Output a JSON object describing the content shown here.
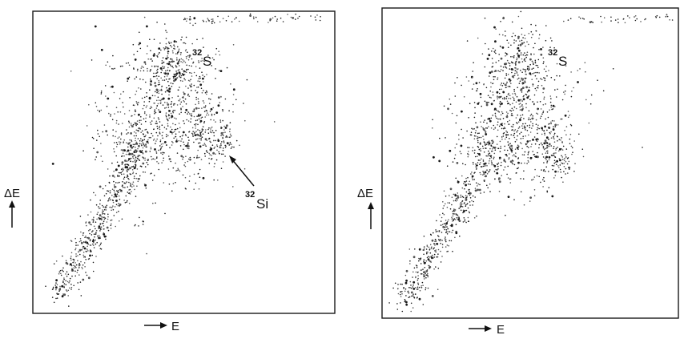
{
  "chart_data": [
    {
      "type": "scatter",
      "panel": "left",
      "xlabel": "E",
      "ylabel": "ΔE",
      "xlim": [
        0,
        100
      ],
      "ylim": [
        0,
        100
      ],
      "grid": false,
      "annotations": [
        {
          "text": "32",
          "kind": "superscript",
          "ion": "S",
          "anchor_x": 52,
          "anchor_y": 84
        },
        {
          "text": "32",
          "kind": "superscript",
          "ion": "Si",
          "anchor_x": 68,
          "anchor_y": 40,
          "arrow_to_x": 64,
          "arrow_to_y": 58
        }
      ],
      "clusters": [
        {
          "name": "S band",
          "cx": 44,
          "cy": 68,
          "sx": 11,
          "sy": 12,
          "n": 650
        },
        {
          "name": "S peak",
          "cx": 46,
          "cy": 82,
          "sx": 4,
          "sy": 5,
          "n": 180
        },
        {
          "name": "left lobe",
          "cx": 36,
          "cy": 57,
          "sx": 6,
          "sy": 4,
          "n": 160
        },
        {
          "name": "right lobe",
          "cx": 57,
          "cy": 57,
          "sx": 4,
          "sy": 5,
          "n": 140
        },
        {
          "name": "Si tail",
          "cx": 64,
          "cy": 58,
          "sx": 2,
          "sy": 3,
          "n": 30
        },
        {
          "name": "diagonal band",
          "from": [
            8,
            6
          ],
          "to": [
            36,
            54
          ],
          "width": 4,
          "n": 520
        },
        {
          "name": "top strip",
          "from": [
            50,
            97
          ],
          "to": [
            96,
            98
          ],
          "width": 1.2,
          "n": 60
        },
        {
          "name": "stray",
          "cx": 36,
          "cy": 30,
          "sx": 1.5,
          "sy": 1,
          "n": 8
        }
      ]
    },
    {
      "type": "scatter",
      "panel": "right",
      "xlabel": "E",
      "ylabel": "ΔE",
      "xlim": [
        0,
        100
      ],
      "ylim": [
        0,
        100
      ],
      "grid": false,
      "annotations": [
        {
          "text": "32",
          "kind": "superscript",
          "ion": "S",
          "anchor_x": 56,
          "anchor_y": 84
        }
      ],
      "clusters": [
        {
          "name": "S band",
          "cx": 45,
          "cy": 66,
          "sx": 10,
          "sy": 12,
          "n": 620
        },
        {
          "name": "S peak",
          "cx": 47,
          "cy": 82,
          "sx": 4,
          "sy": 6,
          "n": 190
        },
        {
          "name": "left lobe",
          "cx": 37,
          "cy": 54,
          "sx": 6,
          "sy": 4,
          "n": 150
        },
        {
          "name": "right lobe",
          "cx": 58,
          "cy": 54,
          "sx": 4,
          "sy": 6,
          "n": 160
        },
        {
          "name": "diagonal band",
          "from": [
            7,
            5
          ],
          "to": [
            36,
            52
          ],
          "width": 4,
          "n": 480
        },
        {
          "name": "top strip",
          "from": [
            62,
            96
          ],
          "to": [
            98,
            97
          ],
          "width": 1.0,
          "n": 40
        }
      ]
    }
  ]
}
